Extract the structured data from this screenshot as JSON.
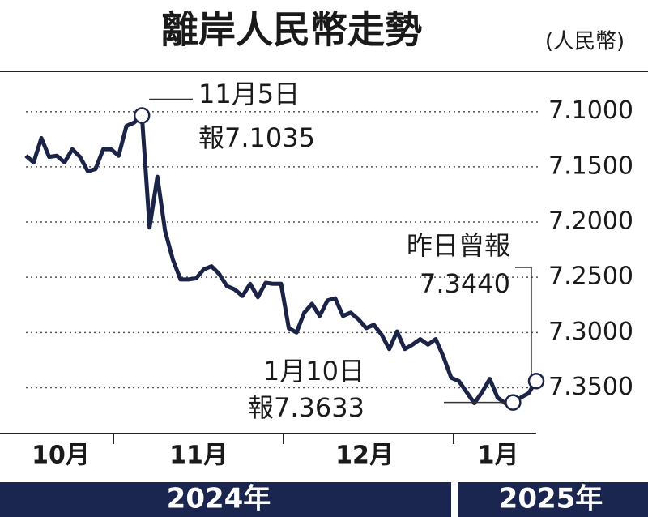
{
  "chart_data": {
    "type": "line",
    "title": "離岸人民幣走勢",
    "unit": "(人民幣)",
    "x_labels": [
      "10月",
      "11月",
      "12月",
      "1月"
    ],
    "years": [
      "2024年",
      "2025年"
    ],
    "invert_y": true,
    "ylim": [
      7.065,
      7.39
    ],
    "yticks": [
      {
        "value": 7.1,
        "label": "7.1000"
      },
      {
        "value": 7.15,
        "label": "7.1500"
      },
      {
        "value": 7.2,
        "label": "7.2000"
      },
      {
        "value": 7.25,
        "label": "7.2500"
      },
      {
        "value": 7.3,
        "label": "7.3000"
      },
      {
        "value": 7.35,
        "label": "7.3500"
      }
    ],
    "grid": true,
    "color": "#1b2346",
    "values": [
      7.14,
      7.146,
      7.124,
      7.141,
      7.14,
      7.146,
      7.134,
      7.141,
      7.154,
      7.152,
      7.134,
      7.134,
      7.14,
      7.113,
      7.11,
      7.1035,
      7.205,
      7.159,
      7.208,
      7.234,
      7.252,
      7.252,
      7.251,
      7.243,
      7.24,
      7.247,
      7.258,
      7.261,
      7.267,
      7.256,
      7.268,
      7.255,
      7.256,
      7.256,
      7.296,
      7.3,
      7.282,
      7.274,
      7.285,
      7.271,
      7.269,
      7.285,
      7.282,
      7.288,
      7.296,
      7.293,
      7.302,
      7.315,
      7.299,
      7.315,
      7.311,
      7.306,
      7.311,
      7.306,
      7.322,
      7.341,
      7.344,
      7.354,
      7.364,
      7.354,
      7.342,
      7.359,
      7.364,
      7.3633,
      7.359,
      7.355,
      7.344
    ],
    "annotations": [
      {
        "point": 15,
        "lines": [
          "11月5日",
          "報7.1035"
        ]
      },
      {
        "point": 63,
        "lines": [
          "1月10日",
          "報7.3633"
        ]
      },
      {
        "point": 66,
        "lines": [
          "昨日曾報",
          "7.3440"
        ]
      }
    ]
  }
}
